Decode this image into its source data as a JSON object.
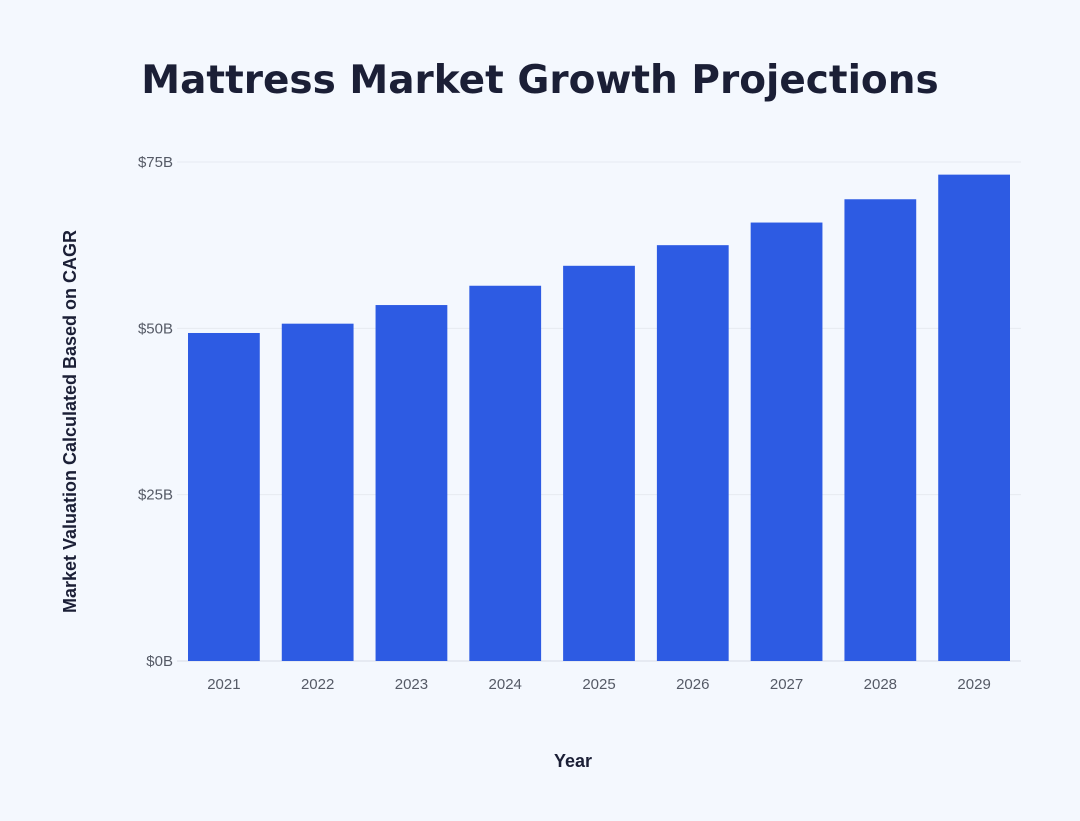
{
  "chart_data": {
    "type": "bar",
    "title": "Mattress Market Growth Projections",
    "xlabel": "Year",
    "ylabel": "Market Valuation Calculated Based on CAGR",
    "categories": [
      "2021",
      "2022",
      "2023",
      "2024",
      "2025",
      "2026",
      "2027",
      "2028",
      "2029"
    ],
    "values": [
      49.3,
      50.7,
      53.5,
      56.4,
      59.4,
      62.5,
      65.9,
      69.4,
      73.1
    ],
    "ylim": [
      0,
      75
    ],
    "yticks": [
      0,
      25,
      50,
      75
    ],
    "ytick_labels": [
      "$0B",
      "$25B",
      "$50B",
      "$75B"
    ],
    "grid": true,
    "bar_color": "#2d5be3"
  }
}
